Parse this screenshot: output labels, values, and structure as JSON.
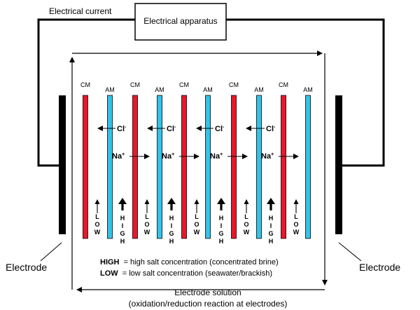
{
  "labels": {
    "electrical_current": "Electrical current",
    "electrical_apparatus": "Electrical apparatus",
    "electrode_left": "Electrode",
    "electrode_right": "Electrode",
    "electrode_solution": "Electrode solution",
    "electrode_solution_note": "(oxidation/reduction reaction at electrodes)",
    "legend_high_key": "HIGH",
    "legend_high_text": "= high salt concentration (concentrated brine)",
    "legend_low_key": "LOW",
    "legend_low_text": "= low salt concentration (seawater/brackish)"
  },
  "membranes": [
    {
      "type": "CM",
      "color": "#e8182a"
    },
    {
      "type": "AM",
      "color": "#34c3e8"
    },
    {
      "type": "CM",
      "color": "#e8182a"
    },
    {
      "type": "AM",
      "color": "#34c3e8"
    },
    {
      "type": "CM",
      "color": "#e8182a"
    },
    {
      "type": "AM",
      "color": "#34c3e8"
    },
    {
      "type": "CM",
      "color": "#e8182a"
    },
    {
      "type": "AM",
      "color": "#34c3e8"
    },
    {
      "type": "CM",
      "color": "#e8182a"
    },
    {
      "type": "AM",
      "color": "#34c3e8"
    }
  ],
  "ions": {
    "chloride": "Cl",
    "chloride_charge": "-",
    "sodium": "Na",
    "sodium_charge": "+"
  },
  "channels": [
    "LOW",
    "HIGH",
    "LOW",
    "HIGH",
    "LOW",
    "HIGH",
    "LOW",
    "HIGH",
    "LOW"
  ]
}
